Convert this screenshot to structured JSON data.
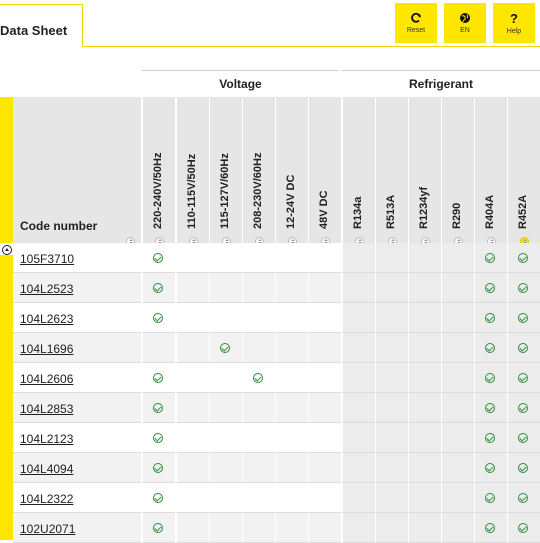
{
  "header": {
    "title": "Data Sheet",
    "buttons": [
      {
        "label": "Reset",
        "icon": "refresh-icon"
      },
      {
        "label": "EN",
        "icon": "globe-icon"
      },
      {
        "label": "Help",
        "icon": "help-icon"
      }
    ]
  },
  "table": {
    "groups": [
      {
        "label": "Voltage"
      },
      {
        "label": "Refrigerant"
      }
    ],
    "code_header": "Code number",
    "columns": [
      "220-240V/50Hz",
      "110-115V/50Hz",
      "115-127V/60Hz",
      "208-230V/60Hz",
      "12-24V DC",
      "48V DC",
      "R134a",
      "R513A",
      "R1234yf",
      "R290",
      "R404A",
      "R452A"
    ],
    "rows": [
      {
        "code": "105F3710",
        "checks": [
          1,
          0,
          0,
          0,
          0,
          0,
          0,
          0,
          0,
          0,
          1,
          1
        ]
      },
      {
        "code": "104L2523",
        "checks": [
          1,
          0,
          0,
          0,
          0,
          0,
          0,
          0,
          0,
          0,
          1,
          1
        ]
      },
      {
        "code": "104L2623",
        "checks": [
          1,
          0,
          0,
          0,
          0,
          0,
          0,
          0,
          0,
          0,
          1,
          1
        ]
      },
      {
        "code": "104L1696",
        "checks": [
          0,
          0,
          1,
          0,
          0,
          0,
          0,
          0,
          0,
          0,
          1,
          1
        ]
      },
      {
        "code": "104L2606",
        "checks": [
          1,
          0,
          0,
          1,
          0,
          0,
          0,
          0,
          0,
          0,
          1,
          1
        ]
      },
      {
        "code": "104L2853",
        "checks": [
          1,
          0,
          0,
          0,
          0,
          0,
          0,
          0,
          0,
          0,
          1,
          1
        ]
      },
      {
        "code": "104L2123",
        "checks": [
          1,
          0,
          0,
          0,
          0,
          0,
          0,
          0,
          0,
          0,
          1,
          1
        ]
      },
      {
        "code": "104L4094",
        "checks": [
          1,
          0,
          0,
          0,
          0,
          0,
          0,
          0,
          0,
          0,
          1,
          1
        ]
      },
      {
        "code": "104L2322",
        "checks": [
          1,
          0,
          0,
          0,
          0,
          0,
          0,
          0,
          0,
          0,
          1,
          1
        ]
      },
      {
        "code": "102U2071",
        "checks": [
          1,
          0,
          0,
          0,
          0,
          0,
          0,
          0,
          0,
          0,
          1,
          1
        ]
      }
    ]
  },
  "colors": {
    "accent": "#ffe600",
    "check": "#2e8b3a"
  }
}
